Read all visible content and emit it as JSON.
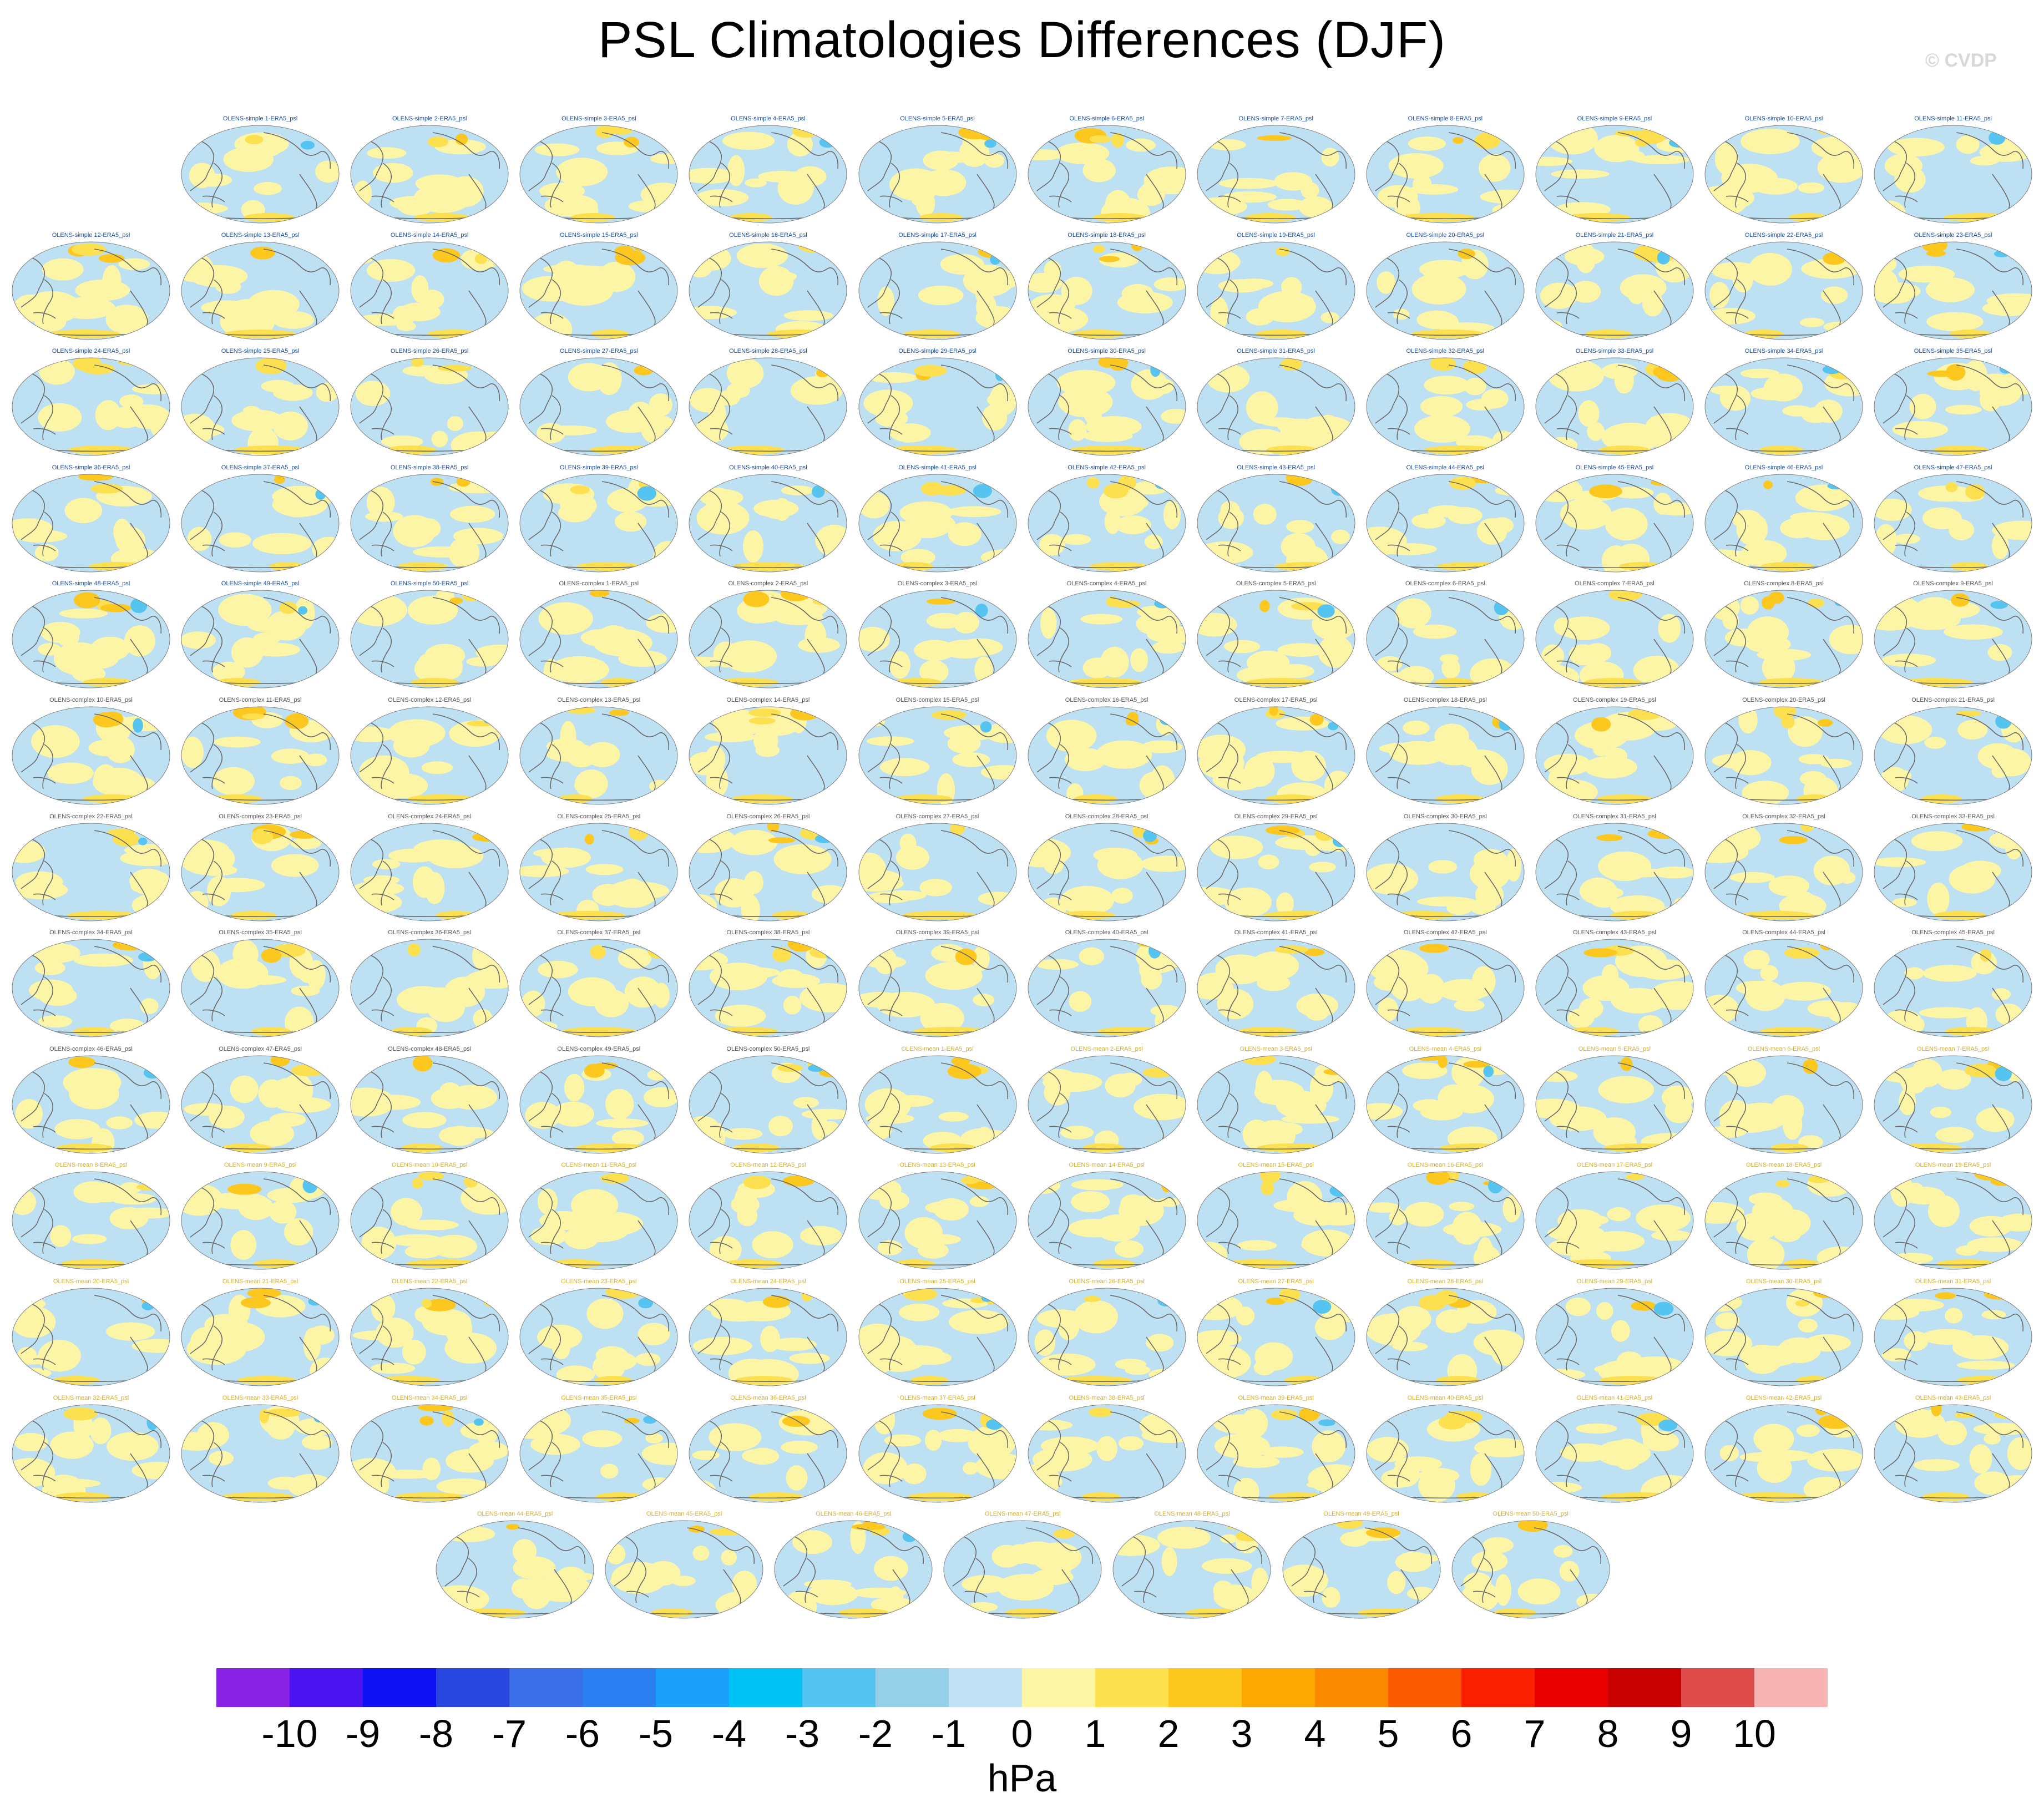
{
  "title": "PSL Climatologies Differences (DJF)",
  "credit": "© CVDP",
  "units": "hPa",
  "colors": {
    "simple_title": "#1a4fa0",
    "complex_title": "#555555",
    "mean_title": "#d4b030",
    "ocean_neutral": "#bde0f3",
    "positive_weak": "#fdf5a6",
    "coastline": "#6a6a6a"
  },
  "chart_data": {
    "type": "heatmap",
    "projection": "robinson global maps, one per ensemble member",
    "field": "sea level pressure climatology difference vs ERA5, DJF",
    "panel_rows": [
      11,
      12,
      12,
      12,
      12,
      12,
      12,
      12,
      12,
      12,
      12,
      12,
      7
    ],
    "panels": [
      "OLENS-simple 1-ERA5_psl",
      "OLENS-simple 2-ERA5_psl",
      "OLENS-simple 3-ERA5_psl",
      "OLENS-simple 4-ERA5_psl",
      "OLENS-simple 5-ERA5_psl",
      "OLENS-simple 6-ERA5_psl",
      "OLENS-simple 7-ERA5_psl",
      "OLENS-simple 8-ERA5_psl",
      "OLENS-simple 9-ERA5_psl",
      "OLENS-simple 10-ERA5_psl",
      "OLENS-simple 11-ERA5_psl",
      "OLENS-simple 12-ERA5_psl",
      "OLENS-simple 13-ERA5_psl",
      "OLENS-simple 14-ERA5_psl",
      "OLENS-simple 15-ERA5_psl",
      "OLENS-simple 16-ERA5_psl",
      "OLENS-simple 17-ERA5_psl",
      "OLENS-simple 18-ERA5_psl",
      "OLENS-simple 19-ERA5_psl",
      "OLENS-simple 20-ERA5_psl",
      "OLENS-simple 21-ERA5_psl",
      "OLENS-simple 22-ERA5_psl",
      "OLENS-simple 23-ERA5_psl",
      "OLENS-simple 24-ERA5_psl",
      "OLENS-simple 25-ERA5_psl",
      "OLENS-simple 26-ERA5_psl",
      "OLENS-simple 27-ERA5_psl",
      "OLENS-simple 28-ERA5_psl",
      "OLENS-simple 29-ERA5_psl",
      "OLENS-simple 30-ERA5_psl",
      "OLENS-simple 31-ERA5_psl",
      "OLENS-simple 32-ERA5_psl",
      "OLENS-simple 33-ERA5_psl",
      "OLENS-simple 34-ERA5_psl",
      "OLENS-simple 35-ERA5_psl",
      "OLENS-simple 36-ERA5_psl",
      "OLENS-simple 37-ERA5_psl",
      "OLENS-simple 38-ERA5_psl",
      "OLENS-simple 39-ERA5_psl",
      "OLENS-simple 40-ERA5_psl",
      "OLENS-simple 41-ERA5_psl",
      "OLENS-simple 42-ERA5_psl",
      "OLENS-simple 43-ERA5_psl",
      "OLENS-simple 44-ERA5_psl",
      "OLENS-simple 45-ERA5_psl",
      "OLENS-simple 46-ERA5_psl",
      "OLENS-simple 47-ERA5_psl",
      "OLENS-simple 48-ERA5_psl",
      "OLENS-simple 49-ERA5_psl",
      "OLENS-simple 50-ERA5_psl",
      "OLENS-complex 1-ERA5_psl",
      "OLENS-complex 2-ERA5_psl",
      "OLENS-complex 3-ERA5_psl",
      "OLENS-complex 4-ERA5_psl",
      "OLENS-complex 5-ERA5_psl",
      "OLENS-complex 6-ERA5_psl",
      "OLENS-complex 7-ERA5_psl",
      "OLENS-complex 8-ERA5_psl",
      "OLENS-complex 9-ERA5_psl",
      "OLENS-complex 10-ERA5_psl",
      "OLENS-complex 11-ERA5_psl",
      "OLENS-complex 12-ERA5_psl",
      "OLENS-complex 13-ERA5_psl",
      "OLENS-complex 14-ERA5_psl",
      "OLENS-complex 15-ERA5_psl",
      "OLENS-complex 16-ERA5_psl",
      "OLENS-complex 17-ERA5_psl",
      "OLENS-complex 18-ERA5_psl",
      "OLENS-complex 19-ERA5_psl",
      "OLENS-complex 20-ERA5_psl",
      "OLENS-complex 21-ERA5_psl",
      "OLENS-complex 22-ERA5_psl",
      "OLENS-complex 23-ERA5_psl",
      "OLENS-complex 24-ERA5_psl",
      "OLENS-complex 25-ERA5_psl",
      "OLENS-complex 26-ERA5_psl",
      "OLENS-complex 27-ERA5_psl",
      "OLENS-complex 28-ERA5_psl",
      "OLENS-complex 29-ERA5_psl",
      "OLENS-complex 30-ERA5_psl",
      "OLENS-complex 31-ERA5_psl",
      "OLENS-complex 32-ERA5_psl",
      "OLENS-complex 33-ERA5_psl",
      "OLENS-complex 34-ERA5_psl",
      "OLENS-complex 35-ERA5_psl",
      "OLENS-complex 36-ERA5_psl",
      "OLENS-complex 37-ERA5_psl",
      "OLENS-complex 38-ERA5_psl",
      "OLENS-complex 39-ERA5_psl",
      "OLENS-complex 40-ERA5_psl",
      "OLENS-complex 41-ERA5_psl",
      "OLENS-complex 42-ERA5_psl",
      "OLENS-complex 43-ERA5_psl",
      "OLENS-complex 44-ERA5_psl",
      "OLENS-complex 45-ERA5_psl",
      "OLENS-complex 46-ERA5_psl",
      "OLENS-complex 47-ERA5_psl",
      "OLENS-complex 48-ERA5_psl",
      "OLENS-complex 49-ERA5_psl",
      "OLENS-complex 50-ERA5_psl",
      "OLENS-mean 1-ERA5_psl",
      "OLENS-mean 2-ERA5_psl",
      "OLENS-mean 3-ERA5_psl",
      "OLENS-mean 4-ERA5_psl",
      "OLENS-mean 5-ERA5_psl",
      "OLENS-mean 6-ERA5_psl",
      "OLENS-mean 7-ERA5_psl",
      "OLENS-mean 8-ERA5_psl",
      "OLENS-mean 9-ERA5_psl",
      "OLENS-mean 10-ERA5_psl",
      "OLENS-mean 11-ERA5_psl",
      "OLENS-mean 12-ERA5_psl",
      "OLENS-mean 13-ERA5_psl",
      "OLENS-mean 14-ERA5_psl",
      "OLENS-mean 15-ERA5_psl",
      "OLENS-mean 16-ERA5_psl",
      "OLENS-mean 17-ERA5_psl",
      "OLENS-mean 18-ERA5_psl",
      "OLENS-mean 19-ERA5_psl",
      "OLENS-mean 20-ERA5_psl",
      "OLENS-mean 21-ERA5_psl",
      "OLENS-mean 22-ERA5_psl",
      "OLENS-mean 23-ERA5_psl",
      "OLENS-mean 24-ERA5_psl",
      "OLENS-mean 25-ERA5_psl",
      "OLENS-mean 26-ERA5_psl",
      "OLENS-mean 27-ERA5_psl",
      "OLENS-mean 28-ERA5_psl",
      "OLENS-mean 29-ERA5_psl",
      "OLENS-mean 30-ERA5_psl",
      "OLENS-mean 31-ERA5_psl",
      "OLENS-mean 32-ERA5_psl",
      "OLENS-mean 33-ERA5_psl",
      "OLENS-mean 34-ERA5_psl",
      "OLENS-mean 35-ERA5_psl",
      "OLENS-mean 36-ERA5_psl",
      "OLENS-mean 37-ERA5_psl",
      "OLENS-mean 38-ERA5_psl",
      "OLENS-mean 39-ERA5_psl",
      "OLENS-mean 40-ERA5_psl",
      "OLENS-mean 41-ERA5_psl",
      "OLENS-mean 42-ERA5_psl",
      "OLENS-mean 43-ERA5_psl",
      "OLENS-mean 44-ERA5_psl",
      "OLENS-mean 45-ERA5_psl",
      "OLENS-mean 46-ERA5_psl",
      "OLENS-mean 47-ERA5_psl",
      "OLENS-mean 48-ERA5_psl",
      "OLENS-mean 49-ERA5_psl",
      "OLENS-mean 50-ERA5_psl"
    ],
    "colorbar": {
      "levels": [
        -10,
        -9,
        -8,
        -7,
        -6,
        -5,
        -4,
        -3,
        -2,
        -1,
        0,
        1,
        2,
        3,
        4,
        5,
        6,
        7,
        8,
        9,
        10
      ],
      "tick_labels": [
        "-10",
        "-9",
        "-8",
        "-7",
        "-6",
        "-5",
        "-4",
        "-3",
        "-2",
        "-1",
        "0",
        "1",
        "2",
        "3",
        "4",
        "5",
        "6",
        "7",
        "8",
        "9",
        "10"
      ],
      "colors": [
        "#8a22e6",
        "#4a13f0",
        "#1010f5",
        "#2a47e0",
        "#3b6ee8",
        "#2a80f0",
        "#1aa0fa",
        "#00c3f5",
        "#55c4f0",
        "#96cfe8",
        "#c0e2f4",
        "#fdf6a5",
        "#fde050",
        "#fcc820",
        "#fca800",
        "#fb8a00",
        "#fb5a00",
        "#fa2000",
        "#eb0000",
        "#c80000",
        "#dc4a4a",
        "#f8b4b4"
      ],
      "label": "hPa"
    }
  }
}
